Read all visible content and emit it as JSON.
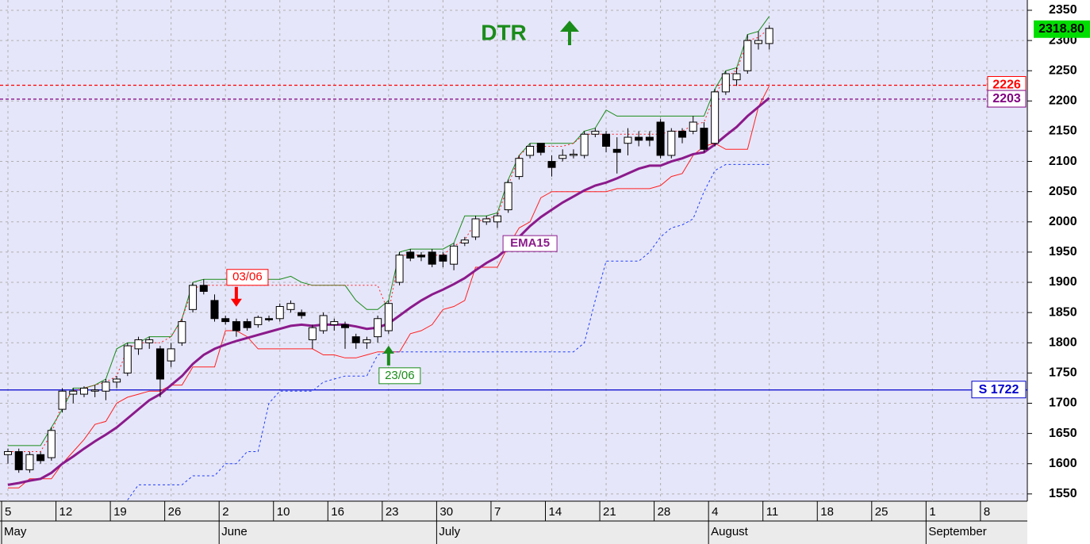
{
  "chart_data": {
    "type": "candlestick",
    "title": "DTR",
    "categories": [
      "5",
      null,
      null,
      null,
      null,
      "12",
      null,
      null,
      null,
      null,
      "19",
      null,
      null,
      null,
      null,
      "26",
      null,
      null,
      null,
      null,
      "2",
      null,
      null,
      null,
      null,
      "10",
      null,
      null,
      null,
      null,
      "16",
      null,
      null,
      null,
      null,
      "23",
      null,
      null,
      null,
      null,
      "30",
      null,
      null,
      null,
      null,
      "7",
      null,
      null,
      null,
      null,
      "14",
      null,
      null,
      null,
      null,
      "21",
      null,
      null,
      null,
      null,
      "28",
      null,
      null,
      null,
      null,
      "4",
      null,
      null,
      null,
      null,
      "11",
      null,
      null,
      null,
      null,
      "18",
      null,
      null,
      null,
      null,
      "25",
      null,
      null,
      null,
      null,
      "1",
      null,
      null,
      null,
      null,
      "8",
      null,
      null
    ],
    "months": [
      "May",
      null,
      null,
      null,
      null,
      null,
      null,
      null,
      null,
      null,
      null,
      null,
      null,
      null,
      null,
      null,
      null,
      null,
      null,
      null,
      "June",
      null,
      null,
      null,
      null,
      null,
      null,
      null,
      null,
      null,
      null,
      null,
      null,
      null,
      null,
      null,
      null,
      null,
      null,
      null,
      "July",
      null,
      null,
      null,
      null,
      null,
      null,
      null,
      null,
      null,
      null,
      null,
      null,
      null,
      null,
      null,
      null,
      null,
      null,
      null,
      null,
      null,
      null,
      null,
      null,
      "August",
      null,
      null,
      null,
      null,
      null,
      null,
      null,
      null,
      null,
      null,
      null,
      null,
      null,
      null,
      null,
      null,
      null,
      null,
      null,
      "September",
      null,
      null,
      null,
      null,
      null,
      null,
      null
    ],
    "open": [
      1615,
      1620,
      1590,
      1615,
      1610,
      1690,
      1715,
      1715,
      1720,
      1720,
      1735,
      1750,
      1790,
      1800,
      1790,
      1770,
      1800,
      1855,
      1895,
      1870,
      1840,
      1835,
      1835,
      1830,
      1840,
      1840,
      1855,
      1850,
      1805,
      1820,
      1830,
      1830,
      1810,
      1800,
      1810,
      1820,
      1900,
      1950,
      1945,
      1950,
      1945,
      1930,
      1965,
      1975,
      2000,
      2000,
      2020,
      2075,
      2110,
      2130,
      2100,
      2105,
      2110,
      2110,
      2145,
      2145,
      2120,
      2130,
      2140,
      2140,
      2165,
      2110,
      2150,
      2150,
      2155,
      2130,
      2215,
      2235,
      2250,
      2295,
      2295,
      null,
      null,
      null,
      null,
      null,
      null,
      null,
      null,
      null,
      null,
      null,
      null,
      null,
      null,
      null,
      null,
      null,
      null,
      null,
      null,
      null,
      null
    ],
    "high": [
      1625,
      1625,
      1620,
      1620,
      1660,
      1725,
      1725,
      1728,
      1730,
      1740,
      1745,
      1800,
      1810,
      1810,
      1795,
      1800,
      1840,
      1900,
      1905,
      1880,
      1845,
      1840,
      1840,
      1845,
      1845,
      1865,
      1870,
      1855,
      1830,
      1850,
      1840,
      1835,
      1815,
      1810,
      1845,
      1870,
      1950,
      1955,
      1950,
      1955,
      1950,
      1965,
      1975,
      2010,
      2010,
      2015,
      2070,
      2110,
      2130,
      2130,
      2110,
      2120,
      2120,
      2150,
      2155,
      2150,
      2140,
      2155,
      2150,
      2150,
      2170,
      2155,
      2155,
      2175,
      2165,
      2220,
      2250,
      2255,
      2310,
      2315,
      2325,
      null,
      null,
      null,
      null,
      null,
      null,
      null,
      null,
      null,
      null,
      null,
      null,
      null,
      null,
      null,
      null,
      null,
      null,
      null,
      null,
      null,
      null
    ],
    "low": [
      1600,
      1585,
      1585,
      1600,
      1605,
      1685,
      1700,
      1710,
      1710,
      1705,
      1725,
      1745,
      1780,
      1790,
      1710,
      1760,
      1795,
      1850,
      1880,
      1835,
      1830,
      1810,
      1820,
      1825,
      1835,
      1835,
      1850,
      1840,
      1790,
      1815,
      1820,
      1790,
      1790,
      1790,
      1800,
      1815,
      1895,
      1935,
      1935,
      1925,
      1925,
      1920,
      1960,
      1970,
      1995,
      1990,
      2015,
      2070,
      2105,
      2110,
      2075,
      2100,
      2105,
      2105,
      2140,
      2115,
      2080,
      2110,
      2125,
      2125,
      2105,
      2105,
      2130,
      2145,
      2115,
      2125,
      2210,
      2225,
      2245,
      2285,
      2285,
      null,
      null,
      null,
      null,
      null,
      null,
      null,
      null,
      null,
      null,
      null,
      null,
      null,
      null,
      null,
      null,
      null,
      null,
      null,
      null,
      null,
      null
    ],
    "close": [
      1620,
      1590,
      1615,
      1605,
      1655,
      1720,
      1720,
      1725,
      1722,
      1735,
      1740,
      1795,
      1805,
      1805,
      1740,
      1790,
      1835,
      1895,
      1885,
      1840,
      1835,
      1820,
      1825,
      1842,
      1838,
      1860,
      1865,
      1845,
      1825,
      1845,
      1835,
      1825,
      1800,
      1805,
      1840,
      1865,
      1945,
      1940,
      1942,
      1930,
      1935,
      1960,
      1970,
      2005,
      2005,
      2010,
      2065,
      2105,
      2125,
      2115,
      2090,
      2110,
      2112,
      2145,
      2150,
      2125,
      2115,
      2140,
      2135,
      2135,
      2110,
      2150,
      2140,
      2165,
      2120,
      2215,
      2245,
      2245,
      2300,
      2300,
      2320,
      null,
      null,
      null,
      null,
      null,
      null,
      null,
      null,
      null,
      null,
      null,
      null,
      null,
      null,
      null,
      null,
      null,
      null,
      null,
      null,
      null,
      null
    ],
    "series": [
      {
        "color": "#1a8c1a",
        "width": 1,
        "dash": "none",
        "values": [
          1630,
          1630,
          1630,
          1630,
          1660,
          1690,
          1725,
          1725,
          1730,
          1740,
          1790,
          1800,
          1800,
          1810,
          1810,
          1810,
          1840,
          1900,
          1905,
          1905,
          1905,
          1905,
          1905,
          1905,
          1905,
          1905,
          1910,
          1900,
          1895,
          1895,
          1895,
          1895,
          1870,
          1855,
          1855,
          1870,
          1950,
          1955,
          1955,
          1955,
          1955,
          1965,
          2010,
          2010,
          2010,
          2015,
          2070,
          2110,
          2130,
          2130,
          2130,
          2130,
          2130,
          2150,
          2155,
          2185,
          2175,
          2175,
          2175,
          2175,
          2175,
          2175,
          2175,
          2175,
          2175,
          2220,
          2250,
          2255,
          2310,
          2315,
          2340,
          null,
          null,
          null,
          null,
          null,
          null,
          null,
          null,
          null,
          null,
          null,
          null,
          null,
          null,
          null,
          null,
          null,
          null,
          null,
          null,
          null,
          null
        ]
      },
      {
        "color": "#ff2020",
        "width": 1,
        "dash": "none",
        "values": [
          1560,
          1560,
          1575,
          1575,
          1575,
          1600,
          1620,
          1640,
          1665,
          1670,
          1700,
          1710,
          1715,
          1720,
          1720,
          1730,
          1730,
          1760,
          1760,
          1760,
          1820,
          1820,
          1810,
          1790,
          1790,
          1790,
          1790,
          1790,
          1790,
          1780,
          1780,
          1775,
          1775,
          1780,
          1785,
          1785,
          1785,
          1815,
          1820,
          1830,
          1855,
          1860,
          1870,
          1925,
          1925,
          1925,
          1960,
          1990,
          2000,
          2040,
          2050,
          2050,
          2050,
          2050,
          2050,
          2050,
          2055,
          2055,
          2055,
          2055,
          2060,
          2075,
          2080,
          2110,
          2125,
          2130,
          2120,
          2120,
          2120,
          2190,
          2225,
          null,
          null,
          null,
          null,
          null,
          null,
          null,
          null,
          null,
          null,
          null,
          null,
          null,
          null,
          null,
          null,
          null,
          null,
          null,
          null,
          null,
          null
        ]
      },
      {
        "color": "#ff2020",
        "width": 1,
        "dash": "2 3",
        "values": [
          1620,
          1620,
          1620,
          1620,
          1650,
          1700,
          1720,
          1725,
          1730,
          1735,
          1745,
          1790,
          1800,
          1800,
          1800,
          1810,
          1840,
          1890,
          1895,
          1895,
          1895,
          1895,
          1895,
          1895,
          1895,
          1895,
          1895,
          1895,
          1895,
          1895,
          1895,
          1895,
          1895,
          1895,
          1895,
          1850,
          1945,
          1945,
          1945,
          1945,
          1945,
          1960,
          1970,
          2000,
          2005,
          2010,
          2060,
          2110,
          2125,
          2125,
          2125,
          2125,
          2130,
          2145,
          2145,
          2145,
          2145,
          2145,
          2145,
          2145,
          2145,
          2150,
          2150,
          2160,
          2165,
          2210,
          2240,
          2250,
          2300,
          2305,
          2320,
          null,
          null,
          null,
          null,
          null,
          null,
          null,
          null,
          null,
          null,
          null,
          null,
          null,
          null,
          null,
          null,
          null,
          null,
          null,
          null,
          null,
          null
        ]
      },
      {
        "color": "#1f3fff",
        "width": 1,
        "dash": "3 3",
        "values": [
          null,
          null,
          null,
          null,
          null,
          null,
          null,
          null,
          null,
          null,
          null,
          1540,
          1565,
          1565,
          1565,
          1565,
          1565,
          1580,
          1580,
          1580,
          1600,
          1600,
          1620,
          1620,
          1700,
          1720,
          1720,
          1720,
          1720,
          1735,
          1740,
          1745,
          1745,
          1745,
          1780,
          1785,
          1785,
          1785,
          1785,
          1785,
          1785,
          1785,
          1785,
          1785,
          1785,
          1785,
          1785,
          1785,
          1785,
          1785,
          1785,
          1785,
          1785,
          1800,
          1870,
          1935,
          1935,
          1935,
          1935,
          1950,
          1975,
          1990,
          1995,
          2005,
          2050,
          2085,
          2095,
          2095,
          2095,
          2095,
          2095,
          null,
          null,
          null,
          null,
          null,
          null,
          null,
          null,
          null,
          null,
          null,
          null,
          null,
          null,
          null,
          null,
          null,
          null,
          null,
          null,
          null,
          null
        ]
      },
      {
        "name": "EMA15",
        "label_at": 48,
        "color": "#8b1a8b",
        "width": 3,
        "dash": "none",
        "values": [
          1565,
          1568,
          1572,
          1575,
          1585,
          1600,
          1612,
          1625,
          1637,
          1648,
          1660,
          1675,
          1690,
          1705,
          1715,
          1730,
          1745,
          1765,
          1780,
          1790,
          1797,
          1803,
          1808,
          1813,
          1818,
          1823,
          1828,
          1830,
          1828,
          1830,
          1830,
          1830,
          1827,
          1823,
          1825,
          1832,
          1845,
          1858,
          1870,
          1880,
          1888,
          1897,
          1907,
          1920,
          1932,
          1942,
          1957,
          1975,
          1993,
          2008,
          2020,
          2032,
          2042,
          2052,
          2060,
          2065,
          2072,
          2080,
          2088,
          2093,
          2093,
          2100,
          2105,
          2112,
          2115,
          2128,
          2143,
          2157,
          2175,
          2190,
          2205,
          null,
          null,
          null,
          null,
          null,
          null,
          null,
          null,
          null,
          null,
          null,
          null,
          null,
          null,
          null,
          null,
          null,
          null,
          null,
          null,
          null,
          null
        ]
      }
    ],
    "levels": [
      {
        "value": 2226,
        "color": "#ff0000",
        "dash": "4 3"
      },
      {
        "value": 2203,
        "color": "#800080",
        "dash": "4 3"
      },
      {
        "value": 1722,
        "label": "S 1722",
        "color": "#0000cc",
        "dash": "none"
      }
    ],
    "signals": [
      {
        "label": "03/06",
        "index": 21,
        "direction": "down",
        "color": "#ff0000"
      },
      {
        "label": "23/06",
        "index": 35,
        "direction": "up",
        "color": "#1a8c1a"
      }
    ],
    "last_price": {
      "value": 2318.8,
      "label": "2318.80"
    },
    "ylim": [
      1538,
      2367
    ],
    "yticks": [
      1550,
      1600,
      1650,
      1700,
      1750,
      1800,
      1850,
      1900,
      1950,
      2000,
      2050,
      2100,
      2150,
      2200,
      2250,
      2300,
      2350
    ],
    "grid": true
  }
}
